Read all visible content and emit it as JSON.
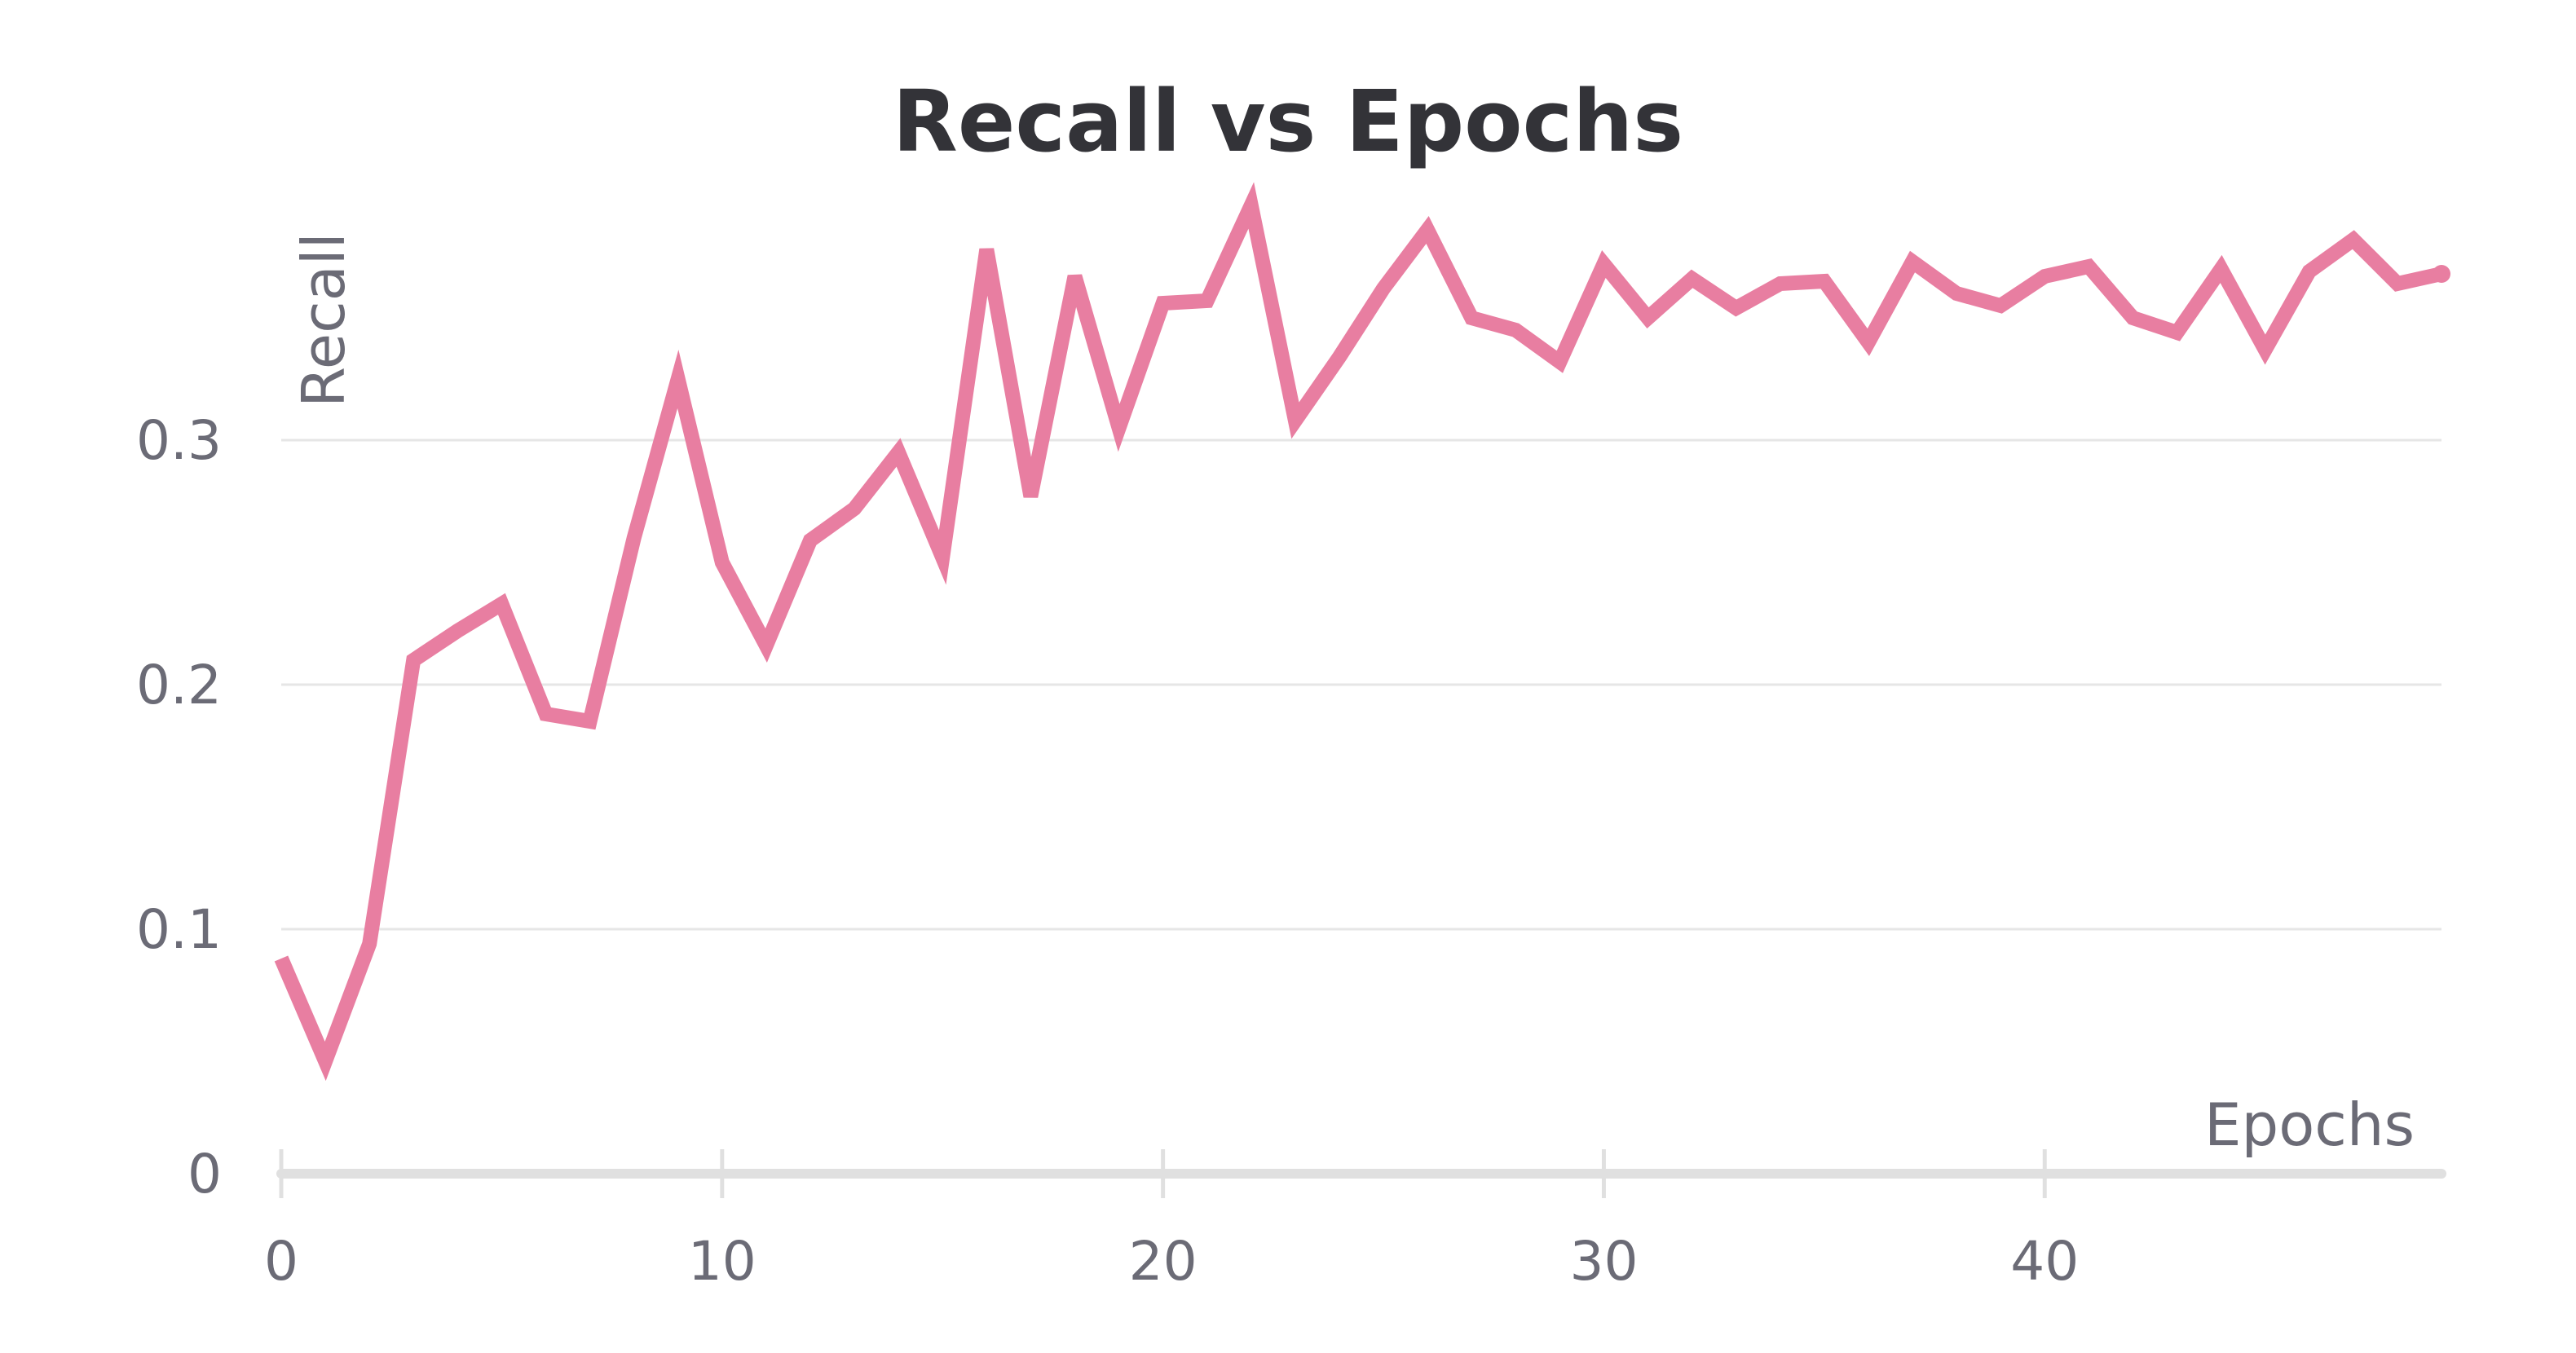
{
  "chart_data": {
    "type": "line",
    "title": "Recall vs Epochs",
    "xlabel": "Epochs",
    "ylabel": "Recall",
    "xlim": [
      0,
      49
    ],
    "ylim": [
      0,
      0.4
    ],
    "x_ticks": [
      0,
      10,
      20,
      30,
      40
    ],
    "x_tick_labels": [
      "0",
      "10",
      "20",
      "30",
      "40"
    ],
    "y_ticks": [
      0,
      0.1,
      0.2,
      0.3
    ],
    "y_tick_labels": [
      "0",
      "0.1",
      "0.2",
      "0.3"
    ],
    "grid": "horizontal",
    "legend": "none",
    "series": [
      {
        "color": "#e87ea1",
        "x": [
          0,
          1,
          2,
          3,
          4,
          5,
          6,
          7,
          8,
          9,
          10,
          11,
          12,
          13,
          14,
          15,
          16,
          17,
          18,
          19,
          20,
          21,
          22,
          23,
          24,
          25,
          26,
          27,
          28,
          29,
          30,
          31,
          32,
          33,
          34,
          35,
          36,
          37,
          38,
          39,
          40,
          41,
          42,
          43,
          44,
          45,
          46,
          47,
          48,
          49
        ],
        "values": [
          0.088,
          0.046,
          0.094,
          0.21,
          0.222,
          0.233,
          0.188,
          0.185,
          0.26,
          0.325,
          0.25,
          0.216,
          0.259,
          0.272,
          0.295,
          0.252,
          0.378,
          0.277,
          0.367,
          0.305,
          0.356,
          0.357,
          0.396,
          0.308,
          0.334,
          0.362,
          0.386,
          0.35,
          0.345,
          0.332,
          0.372,
          0.35,
          0.366,
          0.354,
          0.364,
          0.365,
          0.34,
          0.373,
          0.36,
          0.355,
          0.367,
          0.371,
          0.35,
          0.344,
          0.37,
          0.337,
          0.369,
          0.382,
          0.364,
          0.368
        ]
      }
    ]
  }
}
